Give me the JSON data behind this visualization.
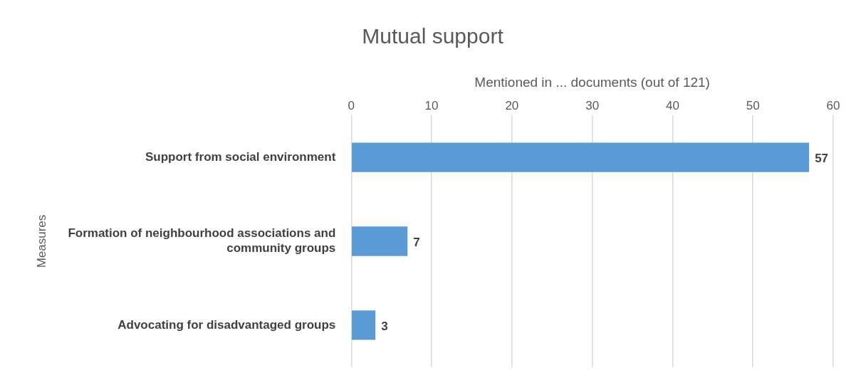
{
  "chart_data": {
    "type": "bar",
    "orientation": "horizontal",
    "title": "Mutual support",
    "xlabel": "Mentioned in ... documents (out of 121)",
    "ylabel": "Measures",
    "categories": [
      "Support from social environment",
      "Formation of neighbourhood associations and community groups",
      "Advocating for disadvantaged groups"
    ],
    "values": [
      57,
      7,
      3
    ],
    "color": "#5b9bd5",
    "xlim": [
      0,
      60
    ],
    "xticks": [
      0,
      10,
      20,
      30,
      40,
      50,
      60
    ],
    "grid": "x",
    "data_labels": true,
    "legend": false
  }
}
